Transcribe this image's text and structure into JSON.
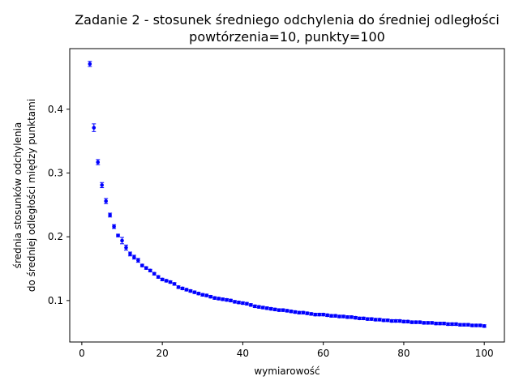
{
  "chart_data": {
    "type": "scatter",
    "title": [
      "Zadanie 2 - stosunek średniego odchylenia do średniej odległości",
      "powtórzenia=10, punkty=100"
    ],
    "xlabel": "wymiarowość",
    "ylabel": [
      "średnia stosunków odchylenia",
      "do średniej odległości między punktami"
    ],
    "xlim": [
      -3,
      105
    ],
    "ylim": [
      0.035,
      0.495
    ],
    "xticks": [
      0,
      20,
      40,
      60,
      80,
      100
    ],
    "yticks": [
      0.1,
      0.2,
      0.3,
      0.4
    ],
    "ytick_labels": [
      "0.1",
      "0.2",
      "0.3",
      "0.4"
    ],
    "marker_color": "#0000ff",
    "grid": false,
    "series": [
      {
        "x": [
          2,
          3,
          4,
          5,
          6,
          7,
          8,
          9,
          10,
          11,
          12,
          13,
          14,
          15,
          16,
          17,
          18,
          19,
          20,
          21,
          22,
          23,
          24,
          25,
          26,
          27,
          28,
          29,
          30,
          31,
          32,
          33,
          34,
          35,
          36,
          37,
          38,
          39,
          40,
          41,
          42,
          43,
          44,
          45,
          46,
          47,
          48,
          49,
          50,
          51,
          52,
          53,
          54,
          55,
          56,
          57,
          58,
          59,
          60,
          61,
          62,
          63,
          64,
          65,
          66,
          67,
          68,
          69,
          70,
          71,
          72,
          73,
          74,
          75,
          76,
          77,
          78,
          79,
          80,
          81,
          82,
          83,
          84,
          85,
          86,
          87,
          88,
          89,
          90,
          91,
          92,
          93,
          94,
          95,
          96,
          97,
          98,
          99,
          100
        ],
        "y": [
          0.471,
          0.371,
          0.317,
          0.281,
          0.256,
          0.234,
          0.216,
          0.202,
          0.194,
          0.183,
          0.173,
          0.168,
          0.163,
          0.155,
          0.151,
          0.147,
          0.142,
          0.137,
          0.133,
          0.131,
          0.129,
          0.126,
          0.121,
          0.119,
          0.117,
          0.115,
          0.113,
          0.111,
          0.109,
          0.108,
          0.106,
          0.104,
          0.103,
          0.102,
          0.101,
          0.1,
          0.098,
          0.097,
          0.096,
          0.095,
          0.093,
          0.091,
          0.09,
          0.089,
          0.088,
          0.087,
          0.086,
          0.085,
          0.085,
          0.084,
          0.083,
          0.082,
          0.081,
          0.081,
          0.08,
          0.079,
          0.078,
          0.078,
          0.078,
          0.077,
          0.076,
          0.076,
          0.075,
          0.075,
          0.074,
          0.074,
          0.073,
          0.072,
          0.072,
          0.071,
          0.071,
          0.07,
          0.07,
          0.069,
          0.069,
          0.068,
          0.068,
          0.068,
          0.067,
          0.067,
          0.066,
          0.066,
          0.066,
          0.065,
          0.065,
          0.065,
          0.064,
          0.064,
          0.064,
          0.063,
          0.063,
          0.063,
          0.062,
          0.062,
          0.062,
          0.061,
          0.061,
          0.061,
          0.06
        ],
        "err": [
          0.004,
          0.006,
          0.004,
          0.004,
          0.004,
          0.003,
          0.003,
          0.002,
          0.005,
          0.004,
          0.003,
          0.003,
          0.003,
          0.002,
          0.002,
          0.002,
          0.002,
          0.002,
          0.002,
          0.002,
          0.002,
          0.002,
          0.002,
          0.002,
          0.002,
          0.002,
          0.002,
          0.002,
          0.002,
          0.002,
          0.002,
          0.002,
          0.002,
          0.002,
          0.002,
          0.002,
          0.002,
          0.002,
          0.002,
          0.002,
          0.002,
          0.002,
          0.002,
          0.002,
          0.002,
          0.002,
          0.002,
          0.002,
          0.002,
          0.002,
          0.002,
          0.002,
          0.002,
          0.002,
          0.002,
          0.002,
          0.002,
          0.002,
          0.002,
          0.002,
          0.002,
          0.002,
          0.002,
          0.002,
          0.002,
          0.002,
          0.002,
          0.002,
          0.002,
          0.002,
          0.002,
          0.002,
          0.002,
          0.002,
          0.002,
          0.002,
          0.002,
          0.002,
          0.002,
          0.002,
          0.002,
          0.002,
          0.002,
          0.002,
          0.002,
          0.002,
          0.002,
          0.002,
          0.002,
          0.002,
          0.002,
          0.002,
          0.002,
          0.002,
          0.002,
          0.002,
          0.002,
          0.002,
          0.002
        ]
      }
    ]
  }
}
